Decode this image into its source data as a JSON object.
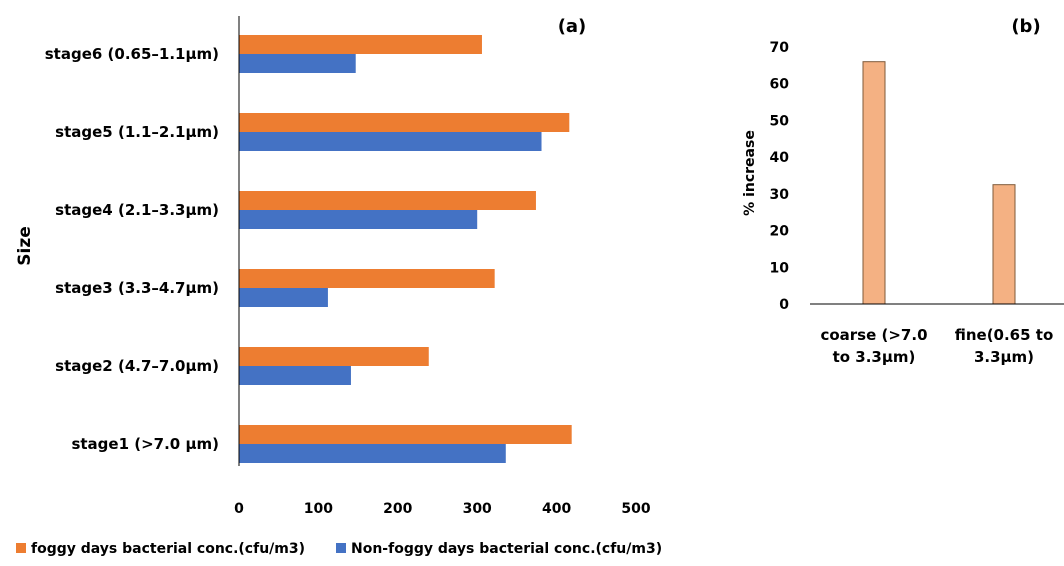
{
  "chart_data": [
    {
      "panel_label": "(a)",
      "type": "bar",
      "orientation": "horizontal",
      "ylabel": "Size",
      "xlabel": "",
      "categories": [
        "stage6 (0.65–1.1µm)",
        "stage5 (1.1–2.1µm)",
        "stage4 (2.1–3.3µm)",
        "stage3 (3.3–4.7µm)",
        "stage2 (4.7–7.0µm)",
        "stage1 (>7.0 µm)"
      ],
      "series": [
        {
          "name": "foggy days bacterial conc.(cfu/m3)",
          "color": "#ED7D31",
          "values": [
            306,
            416,
            374,
            322,
            239,
            419
          ]
        },
        {
          "name": "Non-foggy days bacterial conc.(cfu/m3)",
          "color": "#4472C4",
          "values": [
            147,
            381,
            300,
            112,
            141,
            336
          ]
        }
      ],
      "xlim": [
        0,
        500
      ],
      "xticks": [
        "0",
        "100",
        "200",
        "300",
        "400",
        "500"
      ],
      "grid": false,
      "legend_position": "bottom"
    },
    {
      "panel_label": "(b)",
      "type": "bar",
      "orientation": "vertical",
      "ylabel": "% increase",
      "xlabel": "",
      "categories": [
        [
          "coarse (>7.0",
          "to 3.3µm)"
        ],
        [
          "fine(0.65 to",
          "3.3µm)"
        ]
      ],
      "values": [
        66,
        32.5
      ],
      "color": "#F4B183",
      "ylim": [
        0,
        70
      ],
      "yticks": [
        "0",
        "10",
        "20",
        "30",
        "40",
        "50",
        "60",
        "70"
      ],
      "grid": false
    }
  ]
}
